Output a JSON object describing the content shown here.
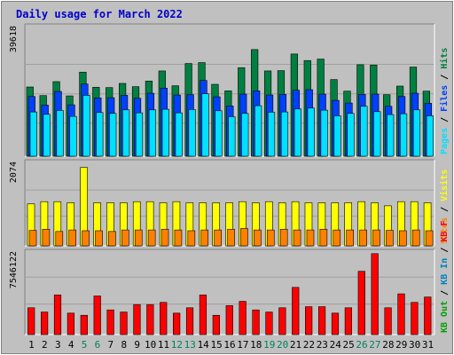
{
  "title": "Daily usage for March 2022",
  "colors": {
    "background": "#c0c0c0",
    "title": "#0000cc",
    "hits": "#008040",
    "files": "#0040ff",
    "pages": "#00e0ff",
    "visits": "#ffff00",
    "sites": "#ff8000",
    "kbin": "#0080c0",
    "kbout": "#00a000",
    "kbf": "#ff0000",
    "weekend_day": "#00805c"
  },
  "chart_data": [
    {
      "type": "bar",
      "name": "hits-files-pages",
      "ylabel_max": "39618",
      "ymax": 39618,
      "legend": [
        {
          "label": "Hits",
          "color": "#008040"
        },
        {
          "label": "Files",
          "color": "#0040ff"
        },
        {
          "label": "Pages",
          "color": "#00e0ff"
        }
      ],
      "x": [
        "1",
        "2",
        "3",
        "4",
        "5",
        "6",
        "7",
        "8",
        "9",
        "10",
        "11",
        "12",
        "13",
        "14",
        "15",
        "16",
        "17",
        "18",
        "19",
        "20",
        "21",
        "22",
        "23",
        "24",
        "25",
        "26",
        "27",
        "28",
        "29",
        "30",
        "31"
      ],
      "series": [
        {
          "name": "Hits",
          "values": [
            23300,
            20400,
            25100,
            20300,
            28300,
            23200,
            23100,
            24500,
            23400,
            25300,
            28700,
            23700,
            31200,
            31500,
            24200,
            22000,
            29800,
            35900,
            28700,
            28800,
            34400,
            32200,
            32700,
            25800,
            21900,
            30800,
            30700,
            20700,
            23600,
            30000,
            21900
          ]
        },
        {
          "name": "Files",
          "values": [
            20100,
            17200,
            21800,
            17300,
            24300,
            19600,
            19700,
            20500,
            19500,
            21200,
            22900,
            20600,
            20700,
            25500,
            20000,
            16900,
            20900,
            22000,
            20600,
            20800,
            22200,
            22400,
            20900,
            18800,
            17900,
            20800,
            20900,
            16800,
            20100,
            21200,
            17800
          ]
        },
        {
          "name": "Pages",
          "values": [
            14900,
            14100,
            15400,
            13400,
            20500,
            14700,
            14400,
            15600,
            14600,
            15600,
            15800,
            14600,
            15700,
            21000,
            15300,
            13300,
            14400,
            17000,
            14800,
            14900,
            15900,
            16200,
            15500,
            13600,
            14400,
            16800,
            15000,
            14000,
            14300,
            15600,
            13600
          ]
        }
      ]
    },
    {
      "type": "bar",
      "name": "visits-sites",
      "ylabel_max": "2074",
      "ymax": 2074,
      "legend": [
        {
          "label": "Visits",
          "color": "#ffff00"
        },
        {
          "label": "Sites",
          "color": "#ff8000"
        }
      ],
      "x": [
        "1",
        "2",
        "3",
        "4",
        "5",
        "6",
        "7",
        "8",
        "9",
        "10",
        "11",
        "12",
        "13",
        "14",
        "15",
        "16",
        "17",
        "18",
        "19",
        "20",
        "21",
        "22",
        "23",
        "24",
        "25",
        "26",
        "27",
        "28",
        "29",
        "30",
        "31"
      ],
      "series": [
        {
          "name": "Visits",
          "values": [
            1110,
            1170,
            1170,
            1140,
            2074,
            1140,
            1140,
            1140,
            1170,
            1170,
            1140,
            1170,
            1140,
            1140,
            1140,
            1140,
            1170,
            1140,
            1170,
            1140,
            1170,
            1140,
            1140,
            1140,
            1140,
            1170,
            1140,
            1060,
            1170,
            1170,
            1140
          ]
        },
        {
          "name": "Sites",
          "values": [
            410,
            440,
            380,
            420,
            400,
            400,
            380,
            420,
            420,
            420,
            440,
            420,
            400,
            420,
            420,
            440,
            460,
            420,
            420,
            440,
            420,
            420,
            440,
            420,
            420,
            420,
            420,
            410,
            400,
            420,
            400
          ]
        }
      ]
    },
    {
      "type": "bar",
      "name": "kbytes",
      "ylabel_max": "7546122",
      "ymax": 7546122,
      "legend": [
        {
          "label": "KB F",
          "color": "#ff0000"
        },
        {
          "label": "KB In",
          "color": "#0080c0"
        },
        {
          "label": "KB Out",
          "color": "#00a000"
        }
      ],
      "x": [
        "1",
        "2",
        "3",
        "4",
        "5",
        "6",
        "7",
        "8",
        "9",
        "10",
        "11",
        "12",
        "13",
        "14",
        "15",
        "16",
        "17",
        "18",
        "19",
        "20",
        "21",
        "22",
        "23",
        "24",
        "25",
        "26",
        "27",
        "28",
        "29",
        "30",
        "31"
      ],
      "series": [
        {
          "name": "KB F",
          "values": [
            2500000,
            2100000,
            3700000,
            2000000,
            1800000,
            3600000,
            2300000,
            2100000,
            2800000,
            2800000,
            3000000,
            2000000,
            2500000,
            3700000,
            1800000,
            2700000,
            3100000,
            2300000,
            2100000,
            2500000,
            4400000,
            2600000,
            2600000,
            2000000,
            2500000,
            5900000,
            7546122,
            2500000,
            3800000,
            3000000,
            3500000
          ]
        }
      ]
    }
  ],
  "x_axis": {
    "labels": [
      "1",
      "2",
      "3",
      "4",
      "5",
      "6",
      "7",
      "8",
      "9",
      "10",
      "11",
      "12",
      "13",
      "14",
      "15",
      "16",
      "17",
      "18",
      "19",
      "20",
      "21",
      "22",
      "23",
      "24",
      "25",
      "26",
      "27",
      "28",
      "29",
      "30",
      "31"
    ],
    "weekend_days": [
      "5",
      "6",
      "12",
      "13",
      "19",
      "20",
      "26",
      "27"
    ]
  }
}
